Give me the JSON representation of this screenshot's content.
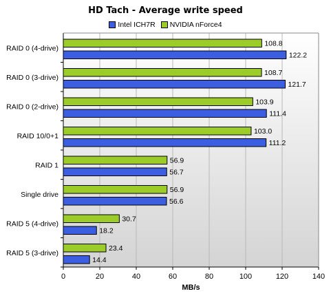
{
  "colors": {
    "series_blue": "#3b5fe0",
    "series_green": "#9ccc2a",
    "plot_bg_top": "#ffffff",
    "plot_bg_bottom": "#d4d4d4",
    "grid": "#b8b8b8"
  },
  "chart_data": {
    "type": "bar",
    "orientation": "horizontal",
    "title": "HD Tach - Average write speed",
    "xlabel": "MB/s",
    "ylabel": "",
    "xlim": [
      0,
      140
    ],
    "x_ticks": [
      "0",
      "20",
      "40",
      "60",
      "80",
      "100",
      "120",
      "140"
    ],
    "grid": true,
    "legend_position": "top",
    "categories": [
      "RAID 0 (4-drive)",
      "RAID 0 (3-drive)",
      "RAID 0 (2-drive)",
      "RAID 10/0+1",
      "RAID 1",
      "Single drive",
      "RAID 5 (4-drive)",
      "RAID 5 (3-drive)"
    ],
    "series": [
      {
        "name": "Intel ICH7R",
        "color": "#3b5fe0",
        "values": [
          122.2,
          121.7,
          111.4,
          111.2,
          56.7,
          56.6,
          18.2,
          14.4
        ],
        "labels": [
          "122.2",
          "121.7",
          "111.4",
          "111.2",
          "56.7",
          "56.6",
          "18.2",
          "14.4"
        ]
      },
      {
        "name": "NVIDIA nForce4",
        "color": "#9ccc2a",
        "values": [
          108.8,
          108.7,
          103.9,
          103.0,
          56.9,
          56.9,
          30.7,
          23.4
        ],
        "labels": [
          "108.8",
          "108.7",
          "103.9",
          "103.0",
          "56.9",
          "56.9",
          "30.7",
          "23.4"
        ]
      }
    ]
  }
}
